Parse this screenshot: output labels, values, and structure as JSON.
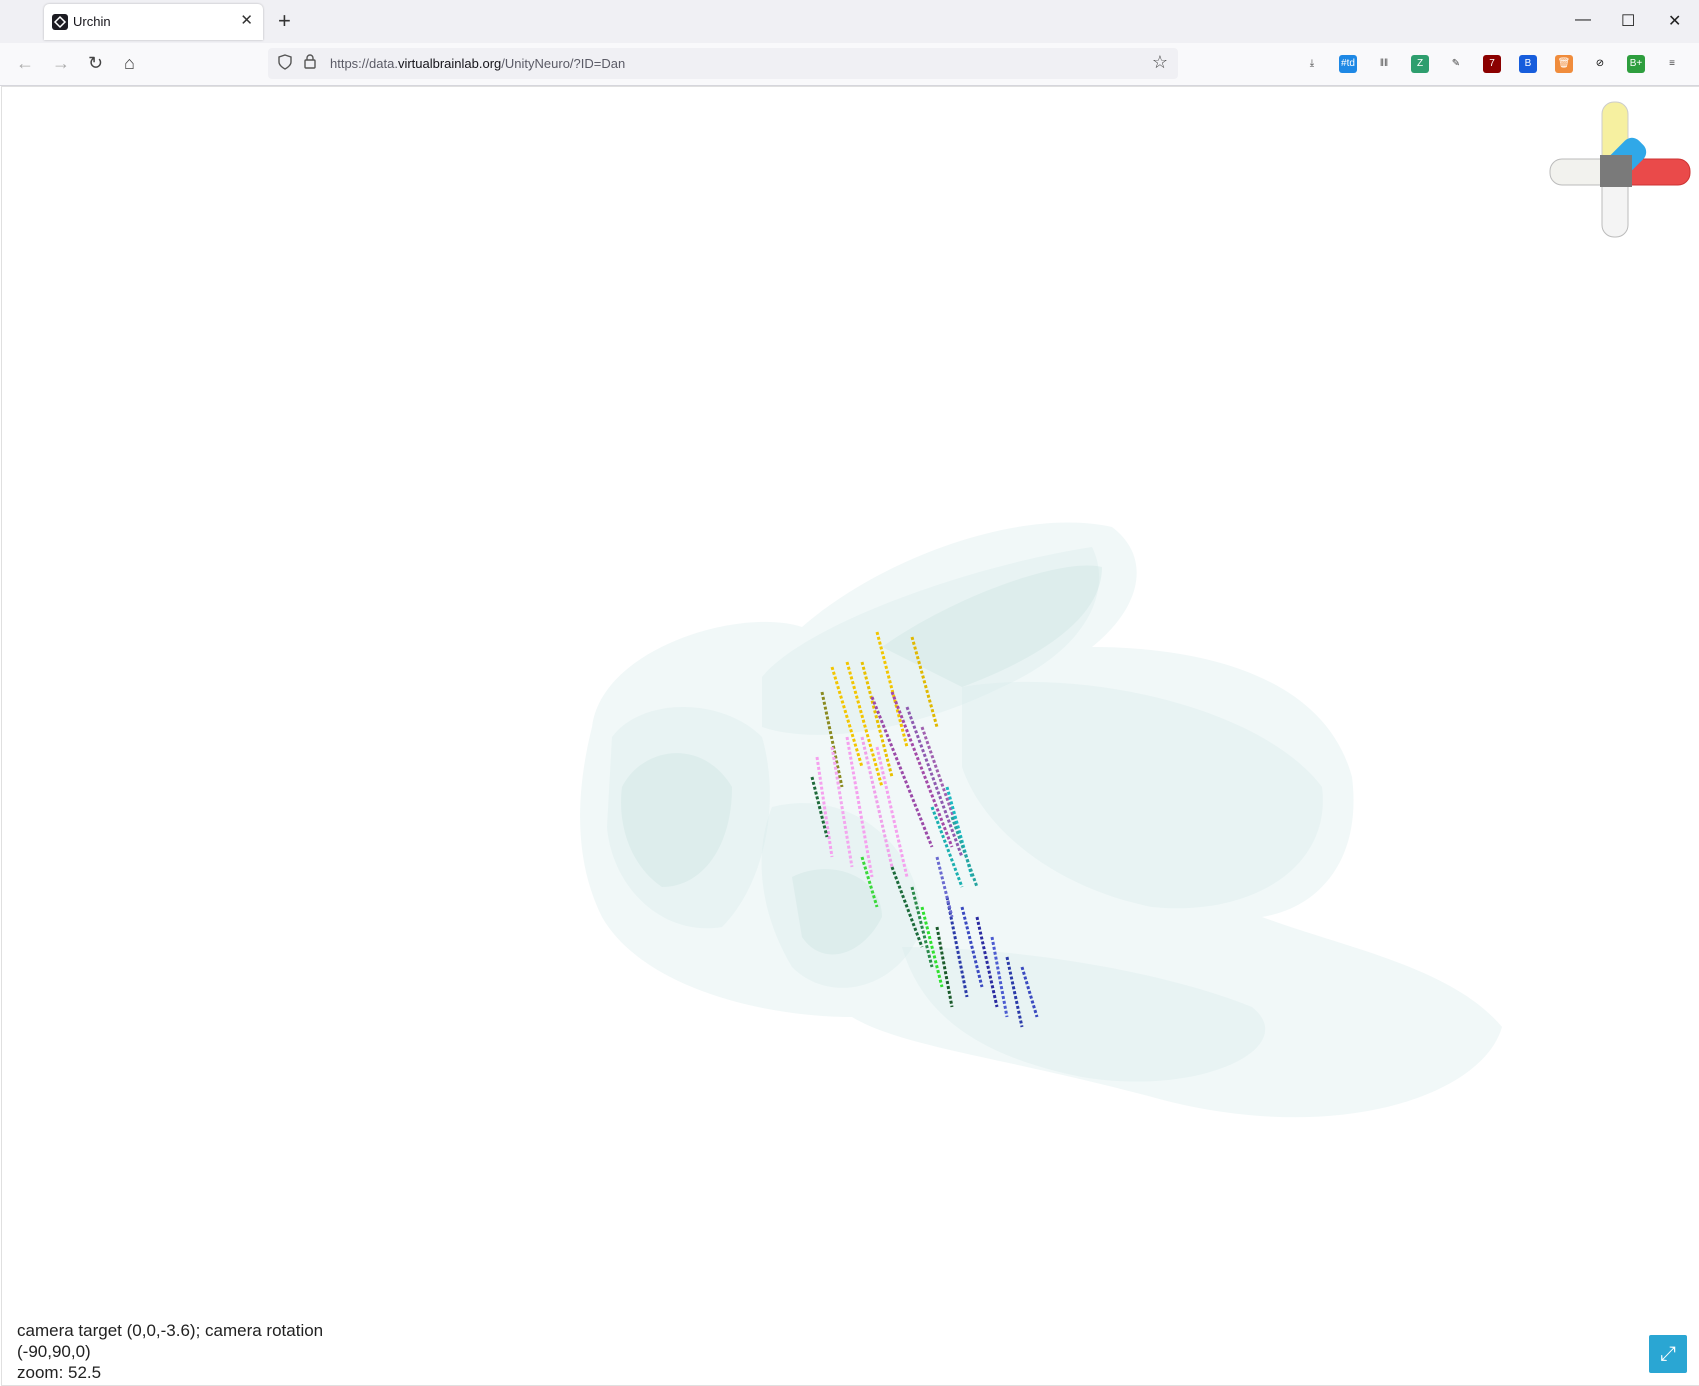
{
  "tab": {
    "title": "Urchin",
    "close_glyph": "✕",
    "icon": "unity-icon"
  },
  "new_tab_glyph": "+",
  "window_controls": {
    "minimize": "—",
    "maximize": "☐",
    "close": "✕"
  },
  "nav": {
    "back": "←",
    "forward": "→",
    "reload": "↻",
    "home": "⌂"
  },
  "address_bar": {
    "url_prefix": "https://data.",
    "url_domain": "virtualbrainlab.org",
    "url_path": "/UnityNeuro/?ID=Dan",
    "star": "☆"
  },
  "extensions": [
    {
      "name": "download-icon",
      "label": "⤓",
      "color": "#f9f9fb",
      "fg": "#444"
    },
    {
      "name": "td-extension-icon",
      "label": "#td",
      "color": "#1e88e5",
      "fg": "#fff"
    },
    {
      "name": "library-icon",
      "label": "‖‖",
      "color": "#f9f9fb",
      "fg": "#444"
    },
    {
      "name": "shield-extension-icon",
      "label": "Z",
      "color": "#2e9e6e",
      "fg": "#fff"
    },
    {
      "name": "bird-extension-icon",
      "label": "✎",
      "color": "#f9f9fb",
      "fg": "#444"
    },
    {
      "name": "ublock-icon",
      "label": "7",
      "color": "#8b0000",
      "fg": "#fff"
    },
    {
      "name": "bitwarden-icon",
      "label": "B",
      "color": "#175ddc",
      "fg": "#fff"
    },
    {
      "name": "trash-extension-icon",
      "label": "🗑",
      "color": "#f08c3c",
      "fg": "#fff"
    },
    {
      "name": "block-icon",
      "label": "⊘",
      "color": "#f9f9fb",
      "fg": "#000"
    },
    {
      "name": "grade-extension-icon",
      "label": "B+",
      "color": "#2e9e3e",
      "fg": "#fff"
    },
    {
      "name": "menu-icon",
      "label": "≡",
      "color": "#f9f9fb",
      "fg": "#444"
    }
  ],
  "overlay": {
    "camera_line": "camera target (0,0,-3.6); camera rotation (-90,90,0)",
    "zoom_line": "zoom: 52.5"
  },
  "fullscreen_glyph": "⤢"
}
